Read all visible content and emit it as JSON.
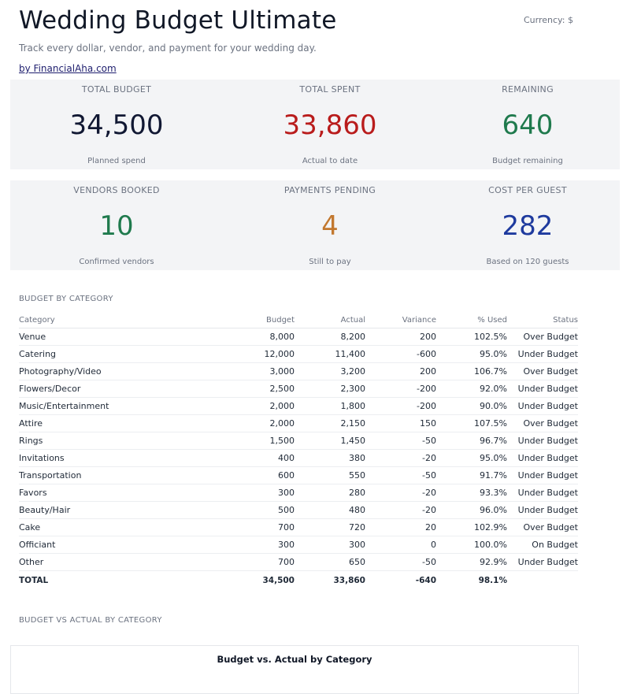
{
  "header": {
    "title": "Wedding Budget Ultimate",
    "currency": "Currency: $",
    "subtitle": "Track every dollar, vendor, and payment for your wedding day.",
    "byline": "by FinancialAha.com"
  },
  "kpis": [
    {
      "label": "TOTAL BUDGET",
      "value": "34,500",
      "sub": "Planned spend",
      "color": "#111833"
    },
    {
      "label": "TOTAL SPENT",
      "value": "33,860",
      "sub": "Actual to date",
      "color": "#b91c1c"
    },
    {
      "label": "REMAINING",
      "value": "640",
      "sub": "Budget remaining",
      "color": "#1f7a4d"
    },
    {
      "label": "VENDORS BOOKED",
      "value": "10",
      "sub": "Confirmed vendors",
      "color": "#1f7a4d"
    },
    {
      "label": "PAYMENTS PENDING",
      "value": "4",
      "sub": "Still to pay",
      "color": "#c2782f"
    },
    {
      "label": "COST PER GUEST",
      "value": "282",
      "sub": "Based on 120 guests",
      "color": "#1e3a9e"
    }
  ],
  "budget_section": {
    "label": "BUDGET BY CATEGORY",
    "columns": [
      "Category",
      "Budget",
      "Actual",
      "Variance",
      "% Used",
      "Status"
    ],
    "rows": [
      [
        "Venue",
        "8,000",
        "8,200",
        "200",
        "102.5%",
        "Over Budget"
      ],
      [
        "Catering",
        "12,000",
        "11,400",
        "-600",
        "95.0%",
        "Under Budget"
      ],
      [
        "Photography/Video",
        "3,000",
        "3,200",
        "200",
        "106.7%",
        "Over Budget"
      ],
      [
        "Flowers/Decor",
        "2,500",
        "2,300",
        "-200",
        "92.0%",
        "Under Budget"
      ],
      [
        "Music/Entertainment",
        "2,000",
        "1,800",
        "-200",
        "90.0%",
        "Under Budget"
      ],
      [
        "Attire",
        "2,000",
        "2,150",
        "150",
        "107.5%",
        "Over Budget"
      ],
      [
        "Rings",
        "1,500",
        "1,450",
        "-50",
        "96.7%",
        "Under Budget"
      ],
      [
        "Invitations",
        "400",
        "380",
        "-20",
        "95.0%",
        "Under Budget"
      ],
      [
        "Transportation",
        "600",
        "550",
        "-50",
        "91.7%",
        "Under Budget"
      ],
      [
        "Favors",
        "300",
        "280",
        "-20",
        "93.3%",
        "Under Budget"
      ],
      [
        "Beauty/Hair",
        "500",
        "480",
        "-20",
        "96.0%",
        "Under Budget"
      ],
      [
        "Cake",
        "700",
        "720",
        "20",
        "102.9%",
        "Over Budget"
      ],
      [
        "Officiant",
        "300",
        "300",
        "0",
        "100.0%",
        "On Budget"
      ],
      [
        "Other",
        "700",
        "650",
        "-50",
        "92.9%",
        "Under Budget"
      ]
    ],
    "total": [
      "TOTAL",
      "34,500",
      "33,860",
      "-640",
      "98.1%",
      ""
    ]
  },
  "chart_section": {
    "label": "BUDGET VS ACTUAL BY CATEGORY",
    "chart_title": "Budget vs. Actual by Category"
  }
}
